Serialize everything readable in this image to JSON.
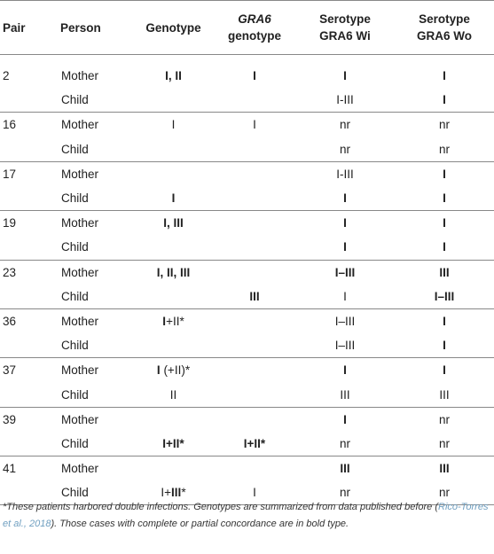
{
  "headers": {
    "pair": "Pair",
    "person": "Person",
    "genotype": "Genotype",
    "gra6_genotype_italic": "GRA6",
    "gra6_genotype_rest": "genotype",
    "serotype_wi_line1": "Serotype",
    "serotype_wi_line2": "GRA6 Wi",
    "serotype_wo_line1": "Serotype",
    "serotype_wo_line2": "GRA6 Wo"
  },
  "rows": [
    {
      "pair": "2",
      "person": "Mother",
      "genotype": "I, II",
      "genotype_bold": true,
      "gra6": "I",
      "gra6_bold": true,
      "wi": "I",
      "wi_bold": true,
      "wo": "I",
      "wo_bold": true
    },
    {
      "pair": "",
      "person": "Child",
      "genotype": "",
      "genotype_bold": false,
      "gra6": "",
      "gra6_bold": false,
      "wi": "I-III",
      "wi_bold": false,
      "wo": "I",
      "wo_bold": true
    },
    {
      "pair": "16",
      "person": "Mother",
      "genotype": "I",
      "genotype_bold": false,
      "gra6": "I",
      "gra6_bold": false,
      "wi": "nr",
      "wi_bold": false,
      "wo": "nr",
      "wo_bold": false
    },
    {
      "pair": "",
      "person": "Child",
      "genotype": "",
      "genotype_bold": false,
      "gra6": "",
      "gra6_bold": false,
      "wi": "nr",
      "wi_bold": false,
      "wo": "nr",
      "wo_bold": false
    },
    {
      "pair": "17",
      "person": "Mother",
      "genotype": "",
      "genotype_bold": false,
      "gra6": "",
      "gra6_bold": false,
      "wi": "I-III",
      "wi_bold": false,
      "wo": "I",
      "wo_bold": true
    },
    {
      "pair": "",
      "person": "Child",
      "genotype": "I",
      "genotype_bold": true,
      "gra6": "",
      "gra6_bold": false,
      "wi": "I",
      "wi_bold": true,
      "wo": "I",
      "wo_bold": true
    },
    {
      "pair": "19",
      "person": "Mother",
      "genotype": "I, III",
      "genotype_bold": true,
      "gra6": "",
      "gra6_bold": false,
      "wi": "I",
      "wi_bold": true,
      "wo": "I",
      "wo_bold": true
    },
    {
      "pair": "",
      "person": "Child",
      "genotype": "",
      "genotype_bold": false,
      "gra6": "",
      "gra6_bold": false,
      "wi": "I",
      "wi_bold": true,
      "wo": "I",
      "wo_bold": true
    },
    {
      "pair": "23",
      "person": "Mother",
      "genotype": "I, II, III",
      "genotype_bold": true,
      "gra6": "",
      "gra6_bold": false,
      "wi": "I–III",
      "wi_bold": true,
      "wo": "III",
      "wo_bold": true
    },
    {
      "pair": "",
      "person": "Child",
      "genotype": "",
      "genotype_bold": false,
      "gra6": "III",
      "gra6_bold": true,
      "wi": "I",
      "wi_bold": false,
      "wo": "I–III",
      "wo_bold": true
    },
    {
      "pair": "36",
      "person": "Mother",
      "genotype_html": "<b>I</b>+II*",
      "gra6": "",
      "gra6_bold": false,
      "wi": "I–III",
      "wi_bold": false,
      "wo": "I",
      "wo_bold": true
    },
    {
      "pair": "",
      "person": "Child",
      "genotype": "",
      "genotype_bold": false,
      "gra6": "",
      "gra6_bold": false,
      "wi": "I–III",
      "wi_bold": false,
      "wo": "I",
      "wo_bold": true
    },
    {
      "pair": "37",
      "person": "Mother",
      "genotype_html": "<b>I</b> (+II)*",
      "gra6": "",
      "gra6_bold": false,
      "wi": "I",
      "wi_bold": true,
      "wo": "I",
      "wo_bold": true
    },
    {
      "pair": "",
      "person": "Child",
      "genotype": "II",
      "genotype_bold": false,
      "gra6": "",
      "gra6_bold": false,
      "wi": "III",
      "wi_bold": false,
      "wo": "III",
      "wo_bold": false
    },
    {
      "pair": "39",
      "person": "Mother",
      "genotype": "",
      "genotype_bold": false,
      "gra6": "",
      "gra6_bold": false,
      "wi": "I",
      "wi_bold": true,
      "wo": "nr",
      "wo_bold": false
    },
    {
      "pair": "",
      "person": "Child",
      "genotype": "I+II*",
      "genotype_bold": true,
      "gra6": "I+II*",
      "gra6_bold": true,
      "wi": "nr",
      "wi_bold": false,
      "wo": "nr",
      "wo_bold": false
    },
    {
      "pair": "41",
      "person": "Mother",
      "genotype": "",
      "genotype_bold": false,
      "gra6": "",
      "gra6_bold": false,
      "wi": "III",
      "wi_bold": true,
      "wo": "III",
      "wo_bold": true
    },
    {
      "pair": "",
      "person": "Child",
      "genotype_html": "I+<b>III</b>*",
      "gra6": "I",
      "gra6_bold": false,
      "wi": "nr",
      "wi_bold": false,
      "wo": "nr",
      "wo_bold": false
    }
  ],
  "footnote": {
    "part1": "*These patients harbored double infections. Genotypes are summarized from data published before (",
    "citation": "Rico-Torres et al., 2018",
    "part2": "). Those cases with complete or partial concordance are in bold type."
  }
}
